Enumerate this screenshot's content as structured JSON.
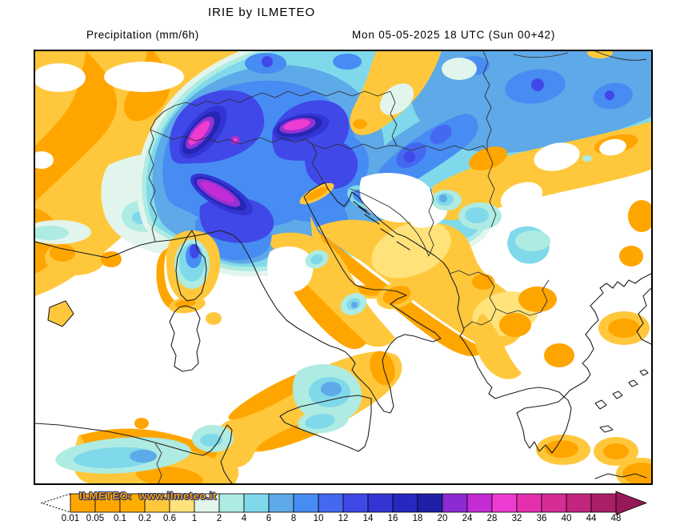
{
  "header": {
    "title": "IRIE by ILMETEO",
    "product_label": "Precipitation (mm/6h)",
    "valid_label": "Mon 05-05-2025 18 UTC (Sun 00+42)"
  },
  "watermark": "ILMETEO:  www.ilmeteo.it",
  "colorbar": {
    "unit": "mm/6h",
    "tick_labels": [
      "0.01",
      "0.05",
      "0.1",
      "0.2",
      "0.6",
      "1",
      "2",
      "4",
      "6",
      "8",
      "10",
      "12",
      "14",
      "16",
      "18",
      "20",
      "24",
      "28",
      "32",
      "36",
      "40",
      "44",
      "48"
    ],
    "cell_colors": [
      "#FFA500",
      "#FFA500",
      "#FFAD00",
      "#FFC83C",
      "#FFE27A",
      "#E2F5EC",
      "#AEEBE2",
      "#7FD9EA",
      "#5EA9E8",
      "#478CF2",
      "#4468F2",
      "#4048E8",
      "#3434D4",
      "#2828C0",
      "#1F1FA8",
      "#8C2BD2",
      "#C42CD6",
      "#EE3CD2",
      "#E530AE",
      "#D62C96",
      "#C2257E",
      "#AA1E66"
    ],
    "overflow_color": "#951956",
    "underflow_style": "dotted-outline"
  }
}
